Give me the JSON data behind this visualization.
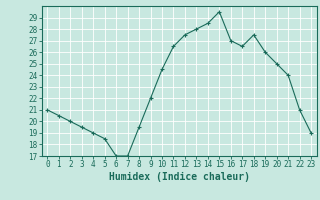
{
  "x": [
    0,
    1,
    2,
    3,
    4,
    5,
    6,
    7,
    8,
    9,
    10,
    11,
    12,
    13,
    14,
    15,
    16,
    17,
    18,
    19,
    20,
    21,
    22,
    23
  ],
  "y": [
    21,
    20.5,
    20,
    19.5,
    19,
    18.5,
    17,
    17,
    19.5,
    22,
    24.5,
    26.5,
    27.5,
    28,
    28.5,
    29.5,
    27,
    26.5,
    27.5,
    26,
    25,
    24,
    21,
    19
  ],
  "line_color": "#1a6b5a",
  "marker": "+",
  "bg_color": "#c8e8e0",
  "grid_color": "#ffffff",
  "axis_color": "#1a6b5a",
  "xlabel": "Humidex (Indice chaleur)",
  "ylim": [
    17,
    30
  ],
  "xlim": [
    -0.5,
    23.5
  ],
  "yticks": [
    17,
    18,
    19,
    20,
    21,
    22,
    23,
    24,
    25,
    26,
    27,
    28,
    29
  ],
  "xticks": [
    0,
    1,
    2,
    3,
    4,
    5,
    6,
    7,
    8,
    9,
    10,
    11,
    12,
    13,
    14,
    15,
    16,
    17,
    18,
    19,
    20,
    21,
    22,
    23
  ],
  "tick_fontsize": 5.5,
  "xlabel_fontsize": 7.0
}
